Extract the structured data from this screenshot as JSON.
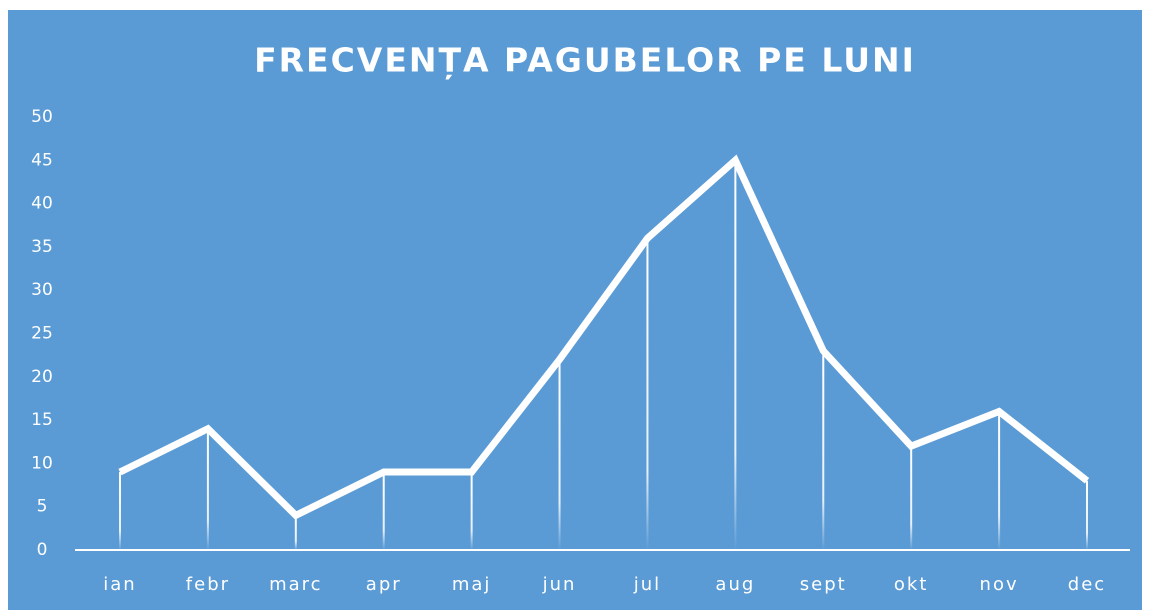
{
  "chart_data": {
    "type": "line",
    "title": "FRECVENȚA PAGUBELOR PE LUNI",
    "categories": [
      "ian",
      "febr",
      "marc",
      "apr",
      "maj",
      "jun",
      "jul",
      "aug",
      "sept",
      "okt",
      "nov",
      "dec"
    ],
    "values": [
      9,
      14,
      4,
      9,
      9,
      22,
      36,
      45,
      23,
      12,
      16,
      8
    ],
    "color": "#ffffff",
    "drop_lines": true,
    "ylim": [
      0,
      50
    ],
    "yticks": [
      0,
      5,
      10,
      15,
      20,
      25,
      30,
      35,
      40,
      45,
      50
    ],
    "grid": false
  }
}
